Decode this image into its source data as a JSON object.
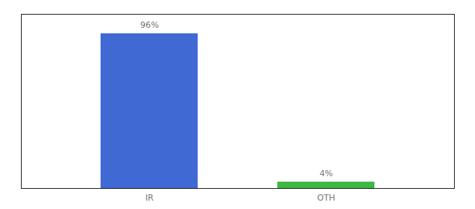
{
  "chart_data": {
    "type": "bar",
    "categories": [
      "IR",
      "OTH"
    ],
    "values": [
      96,
      4
    ],
    "value_labels": [
      "96%",
      "4%"
    ],
    "colors": [
      "#4169d4",
      "#3cb843"
    ],
    "ylim": [
      0,
      108
    ],
    "grid": false,
    "data_labels": true,
    "tick_labels": "x"
  }
}
